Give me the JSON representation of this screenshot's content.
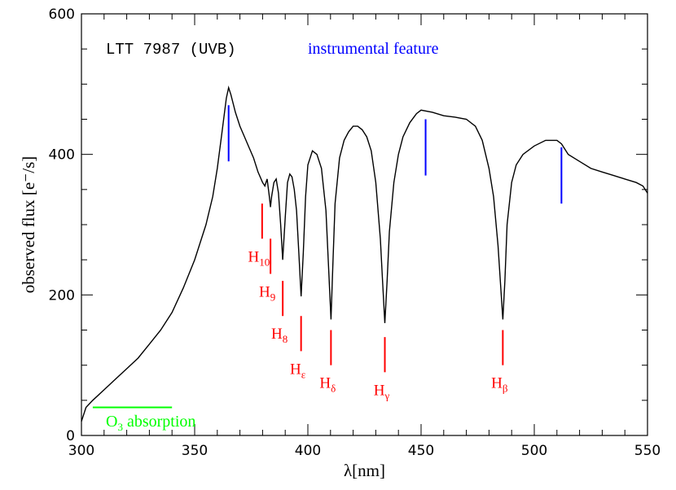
{
  "chart_data": {
    "type": "line",
    "xlabel": "λ[nm]",
    "ylabel": "observed flux [e⁻/s]",
    "label": "LTT 7987 (UVB)",
    "xlim": [
      300,
      550
    ],
    "ylim": [
      0,
      600
    ],
    "xticks": [
      300,
      350,
      400,
      450,
      500,
      550
    ],
    "yticks": [
      0,
      200,
      400,
      600
    ],
    "xminorticks": [
      310,
      320,
      330,
      340,
      360,
      370,
      380,
      390,
      410,
      420,
      430,
      440,
      460,
      470,
      480,
      490,
      510,
      520,
      530,
      540
    ],
    "yminorticks": [
      50,
      100,
      150,
      250,
      300,
      350,
      450,
      500,
      550
    ],
    "color": "#000000",
    "x": [
      300,
      302,
      305,
      310,
      315,
      320,
      325,
      330,
      335,
      340,
      345,
      350,
      355,
      358,
      360,
      362,
      364,
      365,
      366,
      368,
      370,
      372,
      374,
      376,
      378,
      380,
      381,
      382,
      383,
      383.5,
      384,
      385,
      386,
      387,
      388,
      388.9,
      390,
      391,
      392,
      393,
      394,
      395,
      396,
      397,
      398,
      399,
      400,
      402,
      404,
      406,
      408,
      409,
      410.2,
      411,
      412,
      414,
      416,
      418,
      420,
      422,
      424,
      426,
      428,
      430,
      432,
      433,
      434,
      435,
      436,
      438,
      440,
      442,
      445,
      448,
      450,
      455,
      460,
      465,
      470,
      474,
      477,
      480,
      482,
      484,
      485,
      486.1,
      487,
      488,
      490,
      492,
      495,
      500,
      505,
      510,
      512,
      515,
      520,
      525,
      530,
      535,
      540,
      545,
      548,
      550
    ],
    "values": [
      20,
      40,
      50,
      65,
      80,
      95,
      110,
      130,
      150,
      175,
      210,
      250,
      300,
      340,
      380,
      430,
      480,
      495,
      485,
      460,
      440,
      425,
      410,
      395,
      375,
      360,
      355,
      365,
      340,
      325,
      340,
      360,
      365,
      345,
      300,
      250,
      310,
      360,
      372,
      368,
      350,
      320,
      260,
      198,
      260,
      340,
      385,
      405,
      400,
      380,
      320,
      250,
      165,
      240,
      330,
      395,
      420,
      432,
      440,
      440,
      435,
      425,
      405,
      360,
      280,
      220,
      160,
      220,
      290,
      360,
      400,
      425,
      445,
      458,
      463,
      460,
      455,
      453,
      450,
      440,
      420,
      380,
      340,
      270,
      220,
      165,
      220,
      300,
      360,
      385,
      400,
      412,
      420,
      420,
      415,
      400,
      390,
      380,
      375,
      370,
      365,
      360,
      355,
      345
    ],
    "instrumental": {
      "label": "instrumental feature",
      "color": "#0000ff",
      "lines": [
        {
          "x": 365,
          "y1": 470,
          "y2": 390
        },
        {
          "x": 452,
          "y1": 450,
          "y2": 370
        },
        {
          "x": 512,
          "y1": 410,
          "y2": 330
        }
      ]
    },
    "balmer": {
      "color": "#ff0000",
      "lines": [
        {
          "x": 379.8,
          "y1": 330,
          "y2": 280,
          "text": "H",
          "sub": "10"
        },
        {
          "x": 383.5,
          "y1": 280,
          "y2": 230,
          "text": "H",
          "sub": "9"
        },
        {
          "x": 388.9,
          "y1": 220,
          "y2": 170,
          "text": "H",
          "sub": "8"
        },
        {
          "x": 397,
          "y1": 170,
          "y2": 120,
          "text": "H",
          "sub": "ε"
        },
        {
          "x": 410.2,
          "y1": 150,
          "y2": 100,
          "text": "H",
          "sub": "δ"
        },
        {
          "x": 434,
          "y1": 140,
          "y2": 90,
          "text": "H",
          "sub": "γ"
        },
        {
          "x": 486.1,
          "y1": 150,
          "y2": 100,
          "text": "H",
          "sub": "β"
        }
      ]
    },
    "ozone": {
      "x1": 305,
      "x2": 340,
      "y": 40,
      "color": "#00ff00",
      "text": "O",
      "sub": "3",
      "after": " absorption"
    }
  }
}
